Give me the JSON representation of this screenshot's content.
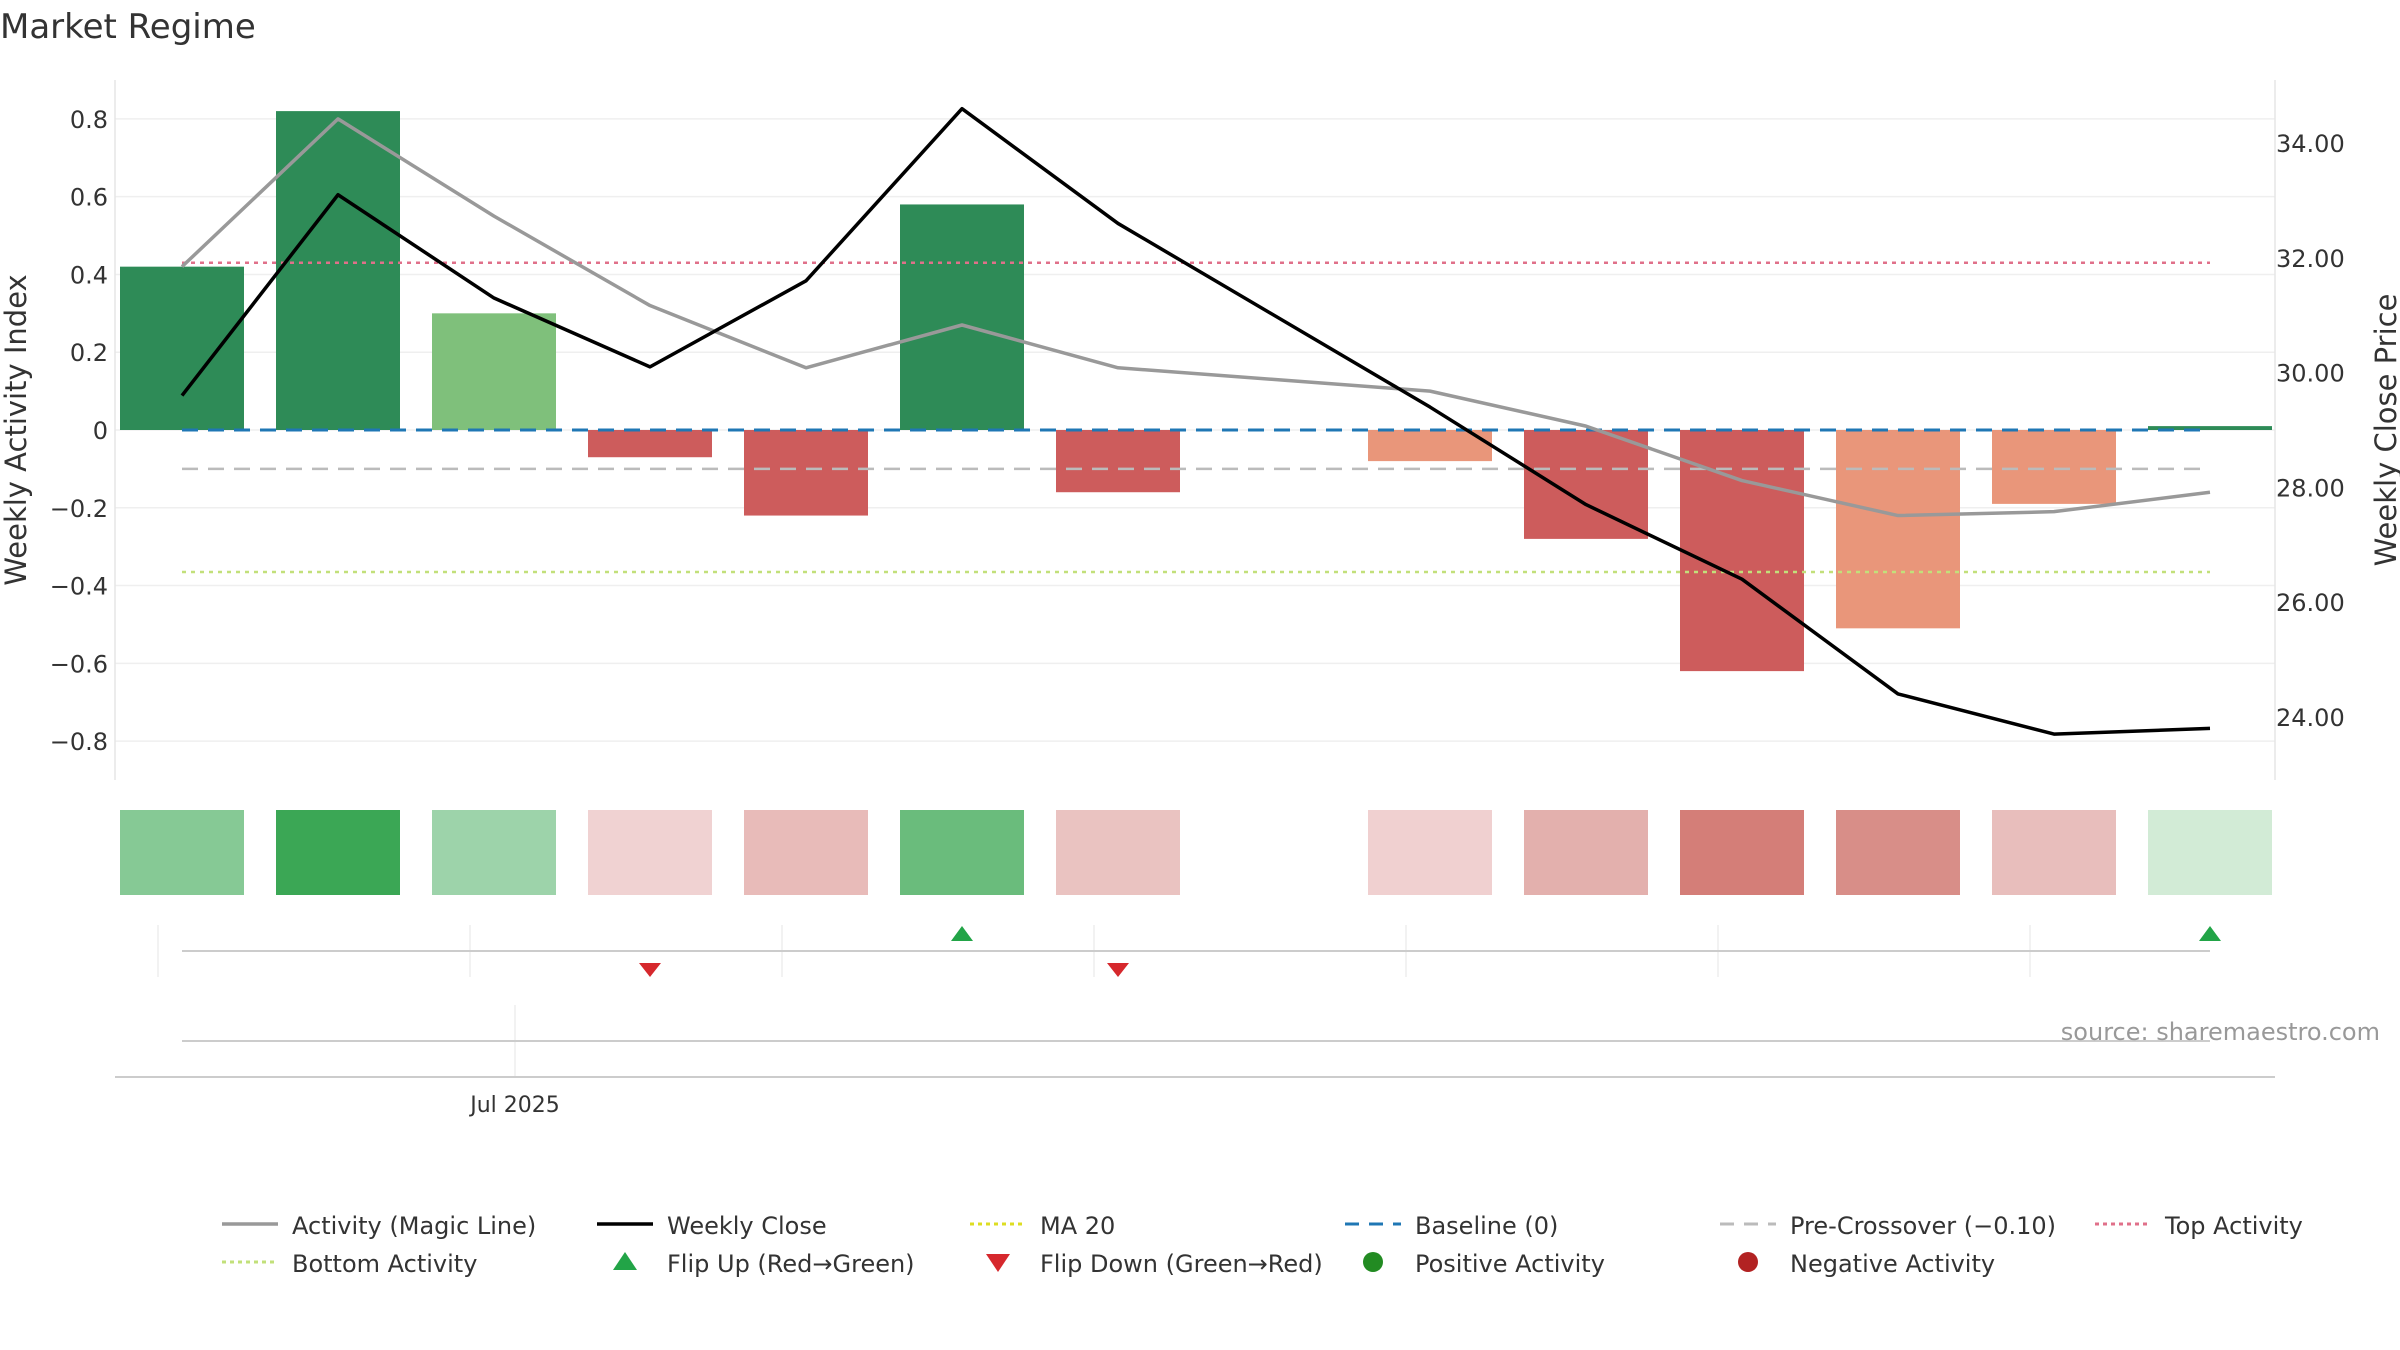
{
  "title": "Market Regime",
  "source": "source: sharemaestro.com",
  "chart_data": {
    "type": "bar",
    "weeks": 14,
    "bars": {
      "values": [
        0.42,
        0.82,
        0.3,
        -0.07,
        -0.22,
        0.58,
        -0.16,
        null,
        -0.08,
        -0.28,
        -0.62,
        -0.51,
        -0.19,
        0.01
      ],
      "colors": [
        "#2e8b57",
        "#2e8b57",
        "#7fc07b",
        "#cd5c5c",
        "#cd5c5c",
        "#2e8b57",
        "#cd5c5c",
        null,
        "#e9967a",
        "#cd5c5c",
        "#cd5c5c",
        "#e9967a",
        "#e9967a",
        "#2e8b57"
      ]
    },
    "activity_line": {
      "name": "Activity (Magic Line)",
      "values": [
        0.42,
        0.8,
        0.55,
        0.32,
        0.16,
        0.27,
        0.16,
        null,
        0.1,
        0.01,
        -0.13,
        -0.22,
        -0.21,
        -0.16
      ],
      "color": "#999999"
    },
    "weekly_close": {
      "name": "Weekly Close",
      "values": [
        29.6,
        33.1,
        31.3,
        30.1,
        31.6,
        34.6,
        32.6,
        null,
        29.4,
        27.7,
        26.4,
        24.4,
        23.7,
        23.8
      ],
      "color": "#000000"
    },
    "top_activity": 0.43,
    "bottom_activity": -0.365,
    "pre_crossover": -0.1,
    "baseline": 0,
    "left_axis": {
      "label": "Weekly Activity Index",
      "ylim": [
        -0.9,
        0.9
      ],
      "ticks": [
        0.8,
        0.6,
        0.4,
        0.2,
        0,
        -0.2,
        -0.4,
        -0.6,
        -0.8
      ],
      "tick_labels": [
        "0.8",
        "0.6",
        "0.4",
        "0.2",
        "0",
        "−0.2",
        "−0.4",
        "−0.6",
        "−0.8"
      ]
    },
    "right_axis": {
      "label": "Weekly Close Price",
      "ylim": [
        22.9,
        35.1
      ],
      "ticks": [
        34,
        32,
        30,
        28,
        26,
        24
      ],
      "tick_labels": [
        "34.00",
        "32.00",
        "30.00",
        "28.00",
        "26.00",
        "24.00"
      ]
    },
    "heatmap": {
      "values": [
        0.42,
        0.82,
        0.3,
        -0.07,
        -0.22,
        0.58,
        -0.16,
        null,
        -0.08,
        -0.28,
        -0.62,
        -0.51,
        -0.19,
        0.01
      ],
      "colors": [
        "#86c995",
        "#3ba755",
        "#9dd3aa",
        "#f0d2d2",
        "#e8bbb9",
        "#6abc7c",
        "#eac3c1",
        null,
        "#f0d0d0",
        "#e3b0ad",
        "#d47e78",
        "#d88e88",
        "#e8bebc",
        "#d2ebd6"
      ]
    },
    "flips": [
      {
        "week": 3,
        "type": "down"
      },
      {
        "week": 5,
        "type": "up"
      },
      {
        "week": 6,
        "type": "down"
      },
      {
        "week": 13,
        "type": "up"
      }
    ],
    "x_tick_label": "Jul 2025",
    "colors": {
      "up": "#22a447",
      "down": "#d6282d",
      "baseline": "#1f77b4",
      "pre_crossover": "#bbbbbb",
      "top_activity": "#e0708a",
      "bottom_activity": "#c2e07a",
      "ma20": "#dddd22",
      "positive": "#228b22",
      "negative": "#b22222"
    }
  },
  "legend": [
    {
      "label": "Activity (Magic Line)",
      "kind": "line",
      "color": "#999999"
    },
    {
      "label": "Weekly Close",
      "kind": "line",
      "color": "#000000"
    },
    {
      "label": "MA 20",
      "kind": "dotted",
      "color": "#dddd22"
    },
    {
      "label": "Baseline (0)",
      "kind": "dashed",
      "color": "#1f77b4"
    },
    {
      "label": "Pre-Crossover (−0.10)",
      "kind": "dashed",
      "color": "#bbbbbb"
    },
    {
      "label": "Top Activity",
      "kind": "dotted",
      "color": "#e0708a"
    },
    {
      "label": "Bottom Activity",
      "kind": "dotted",
      "color": "#c2e07a"
    },
    {
      "label": "Flip Up (Red→Green)",
      "kind": "tri-up",
      "color": "#22a447"
    },
    {
      "label": "Flip Down (Green→Red)",
      "kind": "tri-down",
      "color": "#d6282d"
    },
    {
      "label": "Positive Activity",
      "kind": "dot",
      "color": "#228b22"
    },
    {
      "label": "Negative Activity",
      "kind": "dot",
      "color": "#b22222"
    }
  ]
}
